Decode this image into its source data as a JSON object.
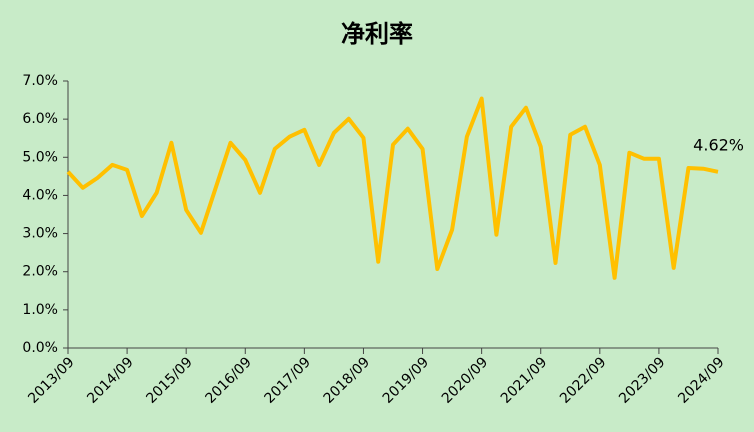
{
  "chart_data": {
    "type": "line",
    "title": "净利率",
    "categories": [
      "2013/09",
      null,
      null,
      null,
      "2014/09",
      null,
      null,
      null,
      "2015/09",
      null,
      null,
      null,
      "2016/09",
      null,
      null,
      null,
      "2017/09",
      null,
      null,
      null,
      "2018/09",
      null,
      null,
      null,
      "2019/09",
      null,
      null,
      null,
      "2020/09",
      null,
      null,
      null,
      "2021/09",
      null,
      null,
      null,
      "2022/09",
      null,
      null,
      null,
      "2023/09",
      null,
      null,
      null,
      "2024/09"
    ],
    "series": [
      {
        "name": "净利率",
        "color": "#ffc000",
        "values": [
          4.62,
          4.2,
          4.46,
          4.8,
          4.67,
          3.46,
          4.07,
          5.38,
          3.62,
          3.02,
          4.2,
          5.38,
          4.93,
          4.07,
          5.22,
          5.54,
          5.72,
          4.8,
          5.64,
          6.01,
          5.51,
          2.26,
          5.33,
          5.75,
          5.22,
          2.07,
          3.1,
          5.54,
          6.54,
          2.97,
          5.8,
          6.3,
          5.28,
          2.23,
          5.59,
          5.8,
          4.8,
          1.84,
          5.12,
          4.96,
          4.96,
          2.1,
          4.72,
          4.7,
          4.62
        ],
        "value_labels": [
          null,
          null,
          null,
          null,
          null,
          null,
          null,
          null,
          null,
          null,
          null,
          null,
          null,
          null,
          null,
          null,
          null,
          null,
          null,
          null,
          null,
          null,
          null,
          null,
          null,
          null,
          null,
          null,
          null,
          null,
          null,
          null,
          null,
          null,
          null,
          null,
          null,
          null,
          null,
          null,
          null,
          null,
          null,
          null,
          "4.62%"
        ]
      }
    ],
    "ylim": [
      0,
      7
    ],
    "yticks": [
      {
        "value": 0,
        "label": "0.0%"
      },
      {
        "value": 1,
        "label": "1.0%"
      },
      {
        "value": 2,
        "label": "2.0%"
      },
      {
        "value": 3,
        "label": "3.0%"
      },
      {
        "value": 4,
        "label": "4.0%"
      },
      {
        "value": 5,
        "label": "5.0%"
      },
      {
        "value": 6,
        "label": "6.0%"
      },
      {
        "value": 7,
        "label": "7.0%"
      }
    ],
    "grid": false
  }
}
